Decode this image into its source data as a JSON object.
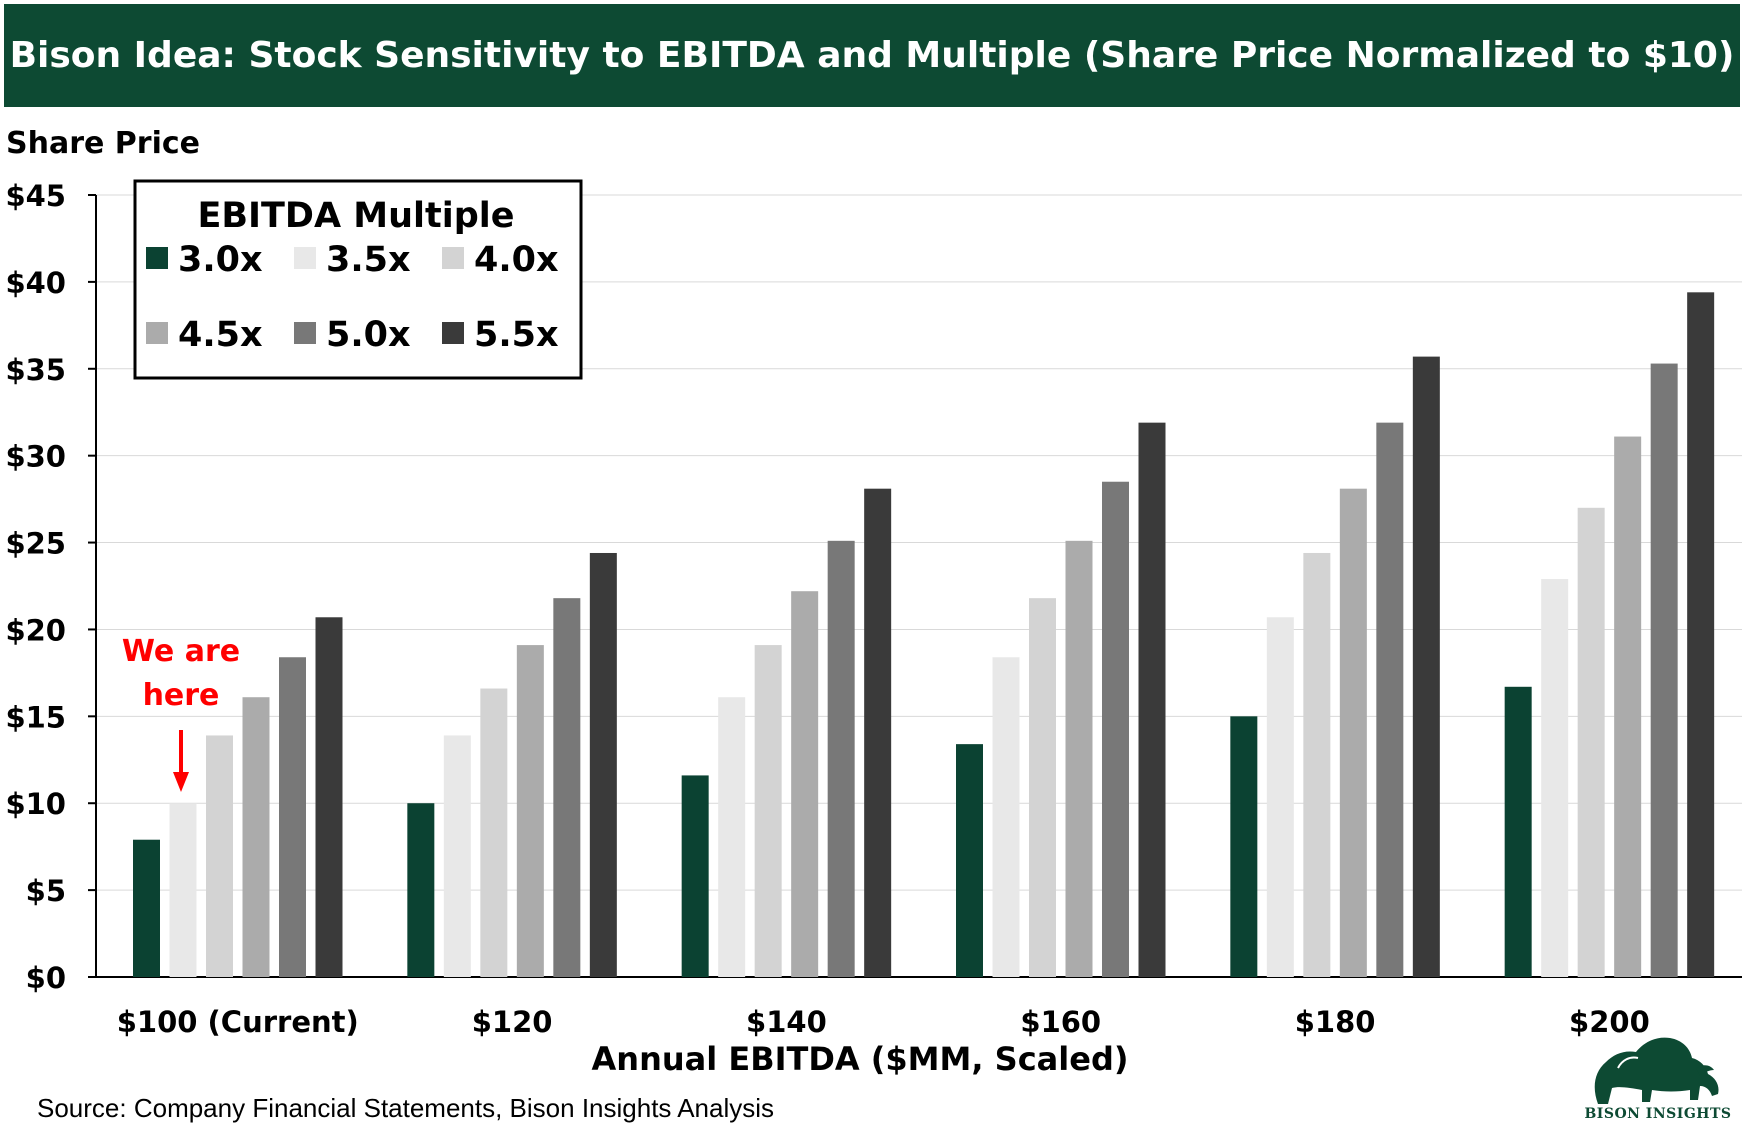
{
  "header": {
    "title": "Bison Idea: Stock Sensitivity to EBITDA and Multiple (Share Price Normalized to $10)"
  },
  "chart_data": {
    "type": "bar",
    "title": "Bison Idea: Stock Sensitivity to EBITDA and Multiple (Share Price Normalized to $10)",
    "xlabel": "Annual EBITDA ($MM, Scaled)",
    "ylabel": "Share Price",
    "ylim": [
      0,
      45
    ],
    "yticks": [
      "$0",
      "$5",
      "$10",
      "$15",
      "$20",
      "$25",
      "$30",
      "$35",
      "$40",
      "$45"
    ],
    "grid": true,
    "legend_title": "EBITDA Multiple",
    "legend_position": "top-left",
    "categories": [
      "$100 (Current)",
      "$120",
      "$140",
      "$160",
      "$180",
      "$200"
    ],
    "series": [
      {
        "name": "3.0x",
        "color": "#0b4232",
        "values": [
          7.9,
          10.0,
          11.6,
          13.4,
          15.0,
          16.7
        ]
      },
      {
        "name": "3.5x",
        "color": "#e8e8e8",
        "values": [
          10.0,
          13.9,
          16.1,
          18.4,
          20.7,
          22.9
        ]
      },
      {
        "name": "4.0x",
        "color": "#d3d3d3",
        "values": [
          13.9,
          16.6,
          19.1,
          21.8,
          24.4,
          27.0
        ]
      },
      {
        "name": "4.5x",
        "color": "#ababab",
        "values": [
          16.1,
          19.1,
          22.2,
          25.1,
          28.1,
          31.1
        ]
      },
      {
        "name": "5.0x",
        "color": "#787878",
        "values": [
          18.4,
          21.8,
          25.1,
          28.5,
          31.9,
          35.3
        ]
      },
      {
        "name": "5.5x",
        "color": "#3a3a3a",
        "values": [
          20.7,
          24.4,
          28.1,
          31.9,
          35.7,
          39.4
        ]
      }
    ],
    "annotation": {
      "text_line1": "We are",
      "text_line2": "here",
      "category_index": 0,
      "series_index": 1,
      "color": "#ff0000"
    }
  },
  "footer": {
    "source": "Source: Company Financial Statements, Bison Insights Analysis"
  },
  "logo": {
    "text": "BISON INSIGHTS",
    "icon": "bison-icon"
  }
}
